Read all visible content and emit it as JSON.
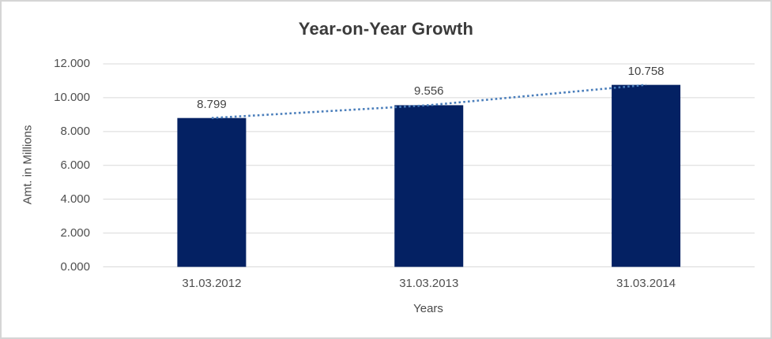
{
  "window": {
    "background": "#ffffff",
    "frame_border_color": "#d5d5d5"
  },
  "chart_data": {
    "type": "bar",
    "title": "Year-on-Year Growth",
    "categories": [
      "31.03.2012",
      "31.03.2013",
      "31.03.2014"
    ],
    "values": [
      8.799,
      9.556,
      10.758
    ],
    "value_labels": [
      "8.799",
      "9.556",
      "10.758"
    ],
    "xlabel": "Years",
    "ylabel": "Amt. in Millions",
    "ylim": [
      0,
      12
    ],
    "y_tick_step": 2,
    "y_tick_labels": [
      "0.000",
      "2.000",
      "4.000",
      "6.000",
      "8.000",
      "10.000",
      "12.000"
    ],
    "grid": true,
    "legend": "none",
    "colors": {
      "bar": "#042163",
      "trendline": "#4a7ebb",
      "gridline": "#d9d9d9",
      "title_text": "#3b3b3b",
      "tick_text": "#4f4f4f"
    },
    "trendline": {
      "style": "dotted",
      "through_values": [
        8.799,
        9.556,
        10.758
      ]
    }
  }
}
